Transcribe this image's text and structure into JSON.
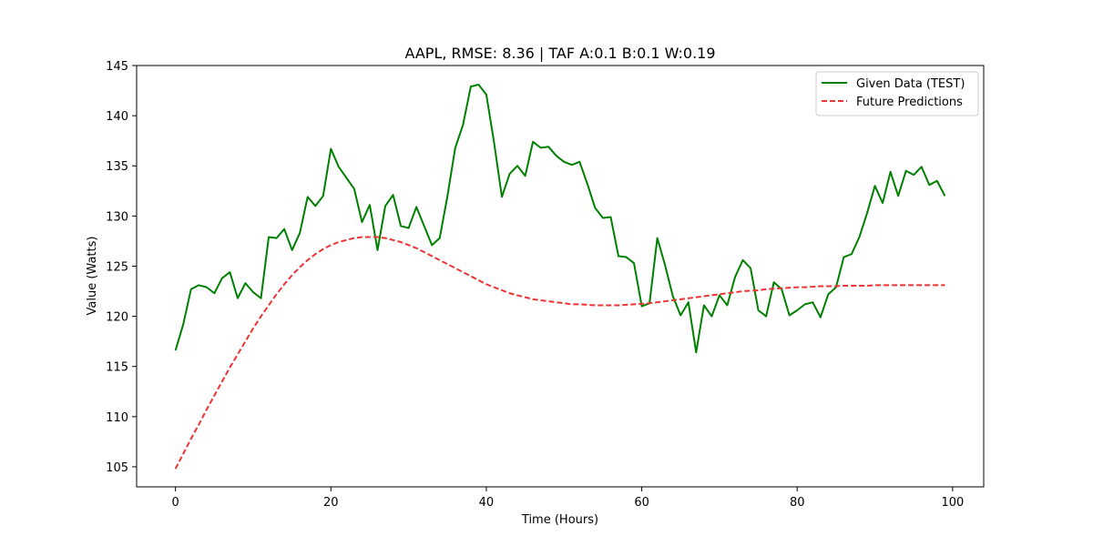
{
  "chart_data": {
    "type": "line",
    "title": "AAPL, RMSE: 8.36 | TAF A:0.1 B:0.1 W:0.19",
    "xlabel": "Time (Hours)",
    "ylabel": "Value (Watts)",
    "xlim": [
      -5,
      104
    ],
    "ylim": [
      103,
      145
    ],
    "xticks": [
      0,
      20,
      40,
      60,
      80,
      100
    ],
    "yticks": [
      105,
      110,
      115,
      120,
      125,
      130,
      135,
      140,
      145
    ],
    "grid": false,
    "legend_position": "upper right",
    "series": [
      {
        "name": "Given Data (TEST)",
        "color": "#008000",
        "style": "solid",
        "x": [
          0,
          1,
          2,
          3,
          4,
          5,
          6,
          7,
          8,
          9,
          10,
          11,
          12,
          13,
          14,
          15,
          16,
          17,
          18,
          19,
          20,
          21,
          22,
          23,
          24,
          25,
          26,
          27,
          28,
          29,
          30,
          31,
          32,
          33,
          34,
          35,
          36,
          37,
          38,
          39,
          40,
          41,
          42,
          43,
          44,
          45,
          46,
          47,
          48,
          49,
          50,
          51,
          52,
          53,
          54,
          55,
          56,
          57,
          58,
          59,
          60,
          61,
          62,
          63,
          64,
          65,
          66,
          67,
          68,
          69,
          70,
          71,
          72,
          73,
          74,
          75,
          76,
          77,
          78,
          79,
          80,
          81,
          82,
          83,
          84,
          85,
          86,
          87,
          88,
          89,
          90,
          91,
          92,
          93,
          94,
          95,
          96,
          97,
          98,
          99
        ],
        "values": [
          116.6,
          119.2,
          122.7,
          123.1,
          122.9,
          122.3,
          123.8,
          124.4,
          121.8,
          123.3,
          122.4,
          121.8,
          127.9,
          127.8,
          128.7,
          126.6,
          128.3,
          131.9,
          131.0,
          132.0,
          136.7,
          134.9,
          133.8,
          132.7,
          129.4,
          131.1,
          126.6,
          131.0,
          132.1,
          129.0,
          128.8,
          130.9,
          129.0,
          127.1,
          127.8,
          132.0,
          136.8,
          139.1,
          142.9,
          143.1,
          142.1,
          137.3,
          131.9,
          134.2,
          135.0,
          134.0,
          137.4,
          136.8,
          136.9,
          136.0,
          135.4,
          135.1,
          135.4,
          133.2,
          130.8,
          129.8,
          129.9,
          126.0,
          125.9,
          125.3,
          121.0,
          121.3,
          127.8,
          125.1,
          122.0,
          120.1,
          121.4,
          116.4,
          121.1,
          120.0,
          122.1,
          121.1,
          123.9,
          125.6,
          124.8,
          120.6,
          120.0,
          123.4,
          122.7,
          120.1,
          120.6,
          121.2,
          121.4,
          119.9,
          122.2,
          122.9,
          125.9,
          126.2,
          127.9,
          130.3,
          133.0,
          131.3,
          134.4,
          132.0,
          134.5,
          134.1,
          134.9,
          133.1,
          133.5,
          132.0
        ]
      },
      {
        "name": "Future Predictions",
        "color": "#ee3333",
        "style": "dashed",
        "x": [
          0,
          1,
          2,
          3,
          4,
          5,
          6,
          7,
          8,
          9,
          10,
          11,
          12,
          13,
          14,
          15,
          16,
          17,
          18,
          19,
          20,
          21,
          22,
          23,
          24,
          25,
          26,
          27,
          28,
          29,
          30,
          31,
          32,
          33,
          34,
          35,
          36,
          37,
          38,
          39,
          40,
          41,
          42,
          43,
          44,
          45,
          46,
          47,
          48,
          49,
          50,
          51,
          52,
          53,
          54,
          55,
          56,
          57,
          58,
          59,
          60,
          61,
          62,
          63,
          64,
          65,
          66,
          67,
          68,
          69,
          70,
          71,
          72,
          73,
          74,
          75,
          76,
          77,
          78,
          79,
          80,
          81,
          82,
          83,
          84,
          85,
          86,
          87,
          88,
          89,
          90,
          91,
          92,
          93,
          94,
          95,
          96,
          97,
          98,
          99
        ],
        "values": [
          104.8,
          106.3,
          107.8,
          109.2,
          110.7,
          112.1,
          113.5,
          114.9,
          116.2,
          117.5,
          118.8,
          120.0,
          121.1,
          122.2,
          123.2,
          124.1,
          124.9,
          125.6,
          126.2,
          126.7,
          127.1,
          127.4,
          127.6,
          127.8,
          127.9,
          127.9,
          127.9,
          127.8,
          127.6,
          127.4,
          127.1,
          126.8,
          126.4,
          126.0,
          125.6,
          125.2,
          124.8,
          124.4,
          124.0,
          123.6,
          123.2,
          122.9,
          122.6,
          122.3,
          122.1,
          121.9,
          121.7,
          121.6,
          121.5,
          121.4,
          121.3,
          121.2,
          121.2,
          121.15,
          121.1,
          121.1,
          121.1,
          121.1,
          121.15,
          121.2,
          121.25,
          121.3,
          121.4,
          121.5,
          121.6,
          121.7,
          121.8,
          121.9,
          122.0,
          122.1,
          122.2,
          122.3,
          122.4,
          122.5,
          122.55,
          122.6,
          122.7,
          122.75,
          122.8,
          122.85,
          122.9,
          122.9,
          122.95,
          123.0,
          123.0,
          123.0,
          123.05,
          123.05,
          123.05,
          123.05,
          123.1,
          123.1,
          123.1,
          123.1,
          123.1,
          123.1,
          123.1,
          123.1,
          123.1,
          123.1
        ]
      }
    ]
  }
}
